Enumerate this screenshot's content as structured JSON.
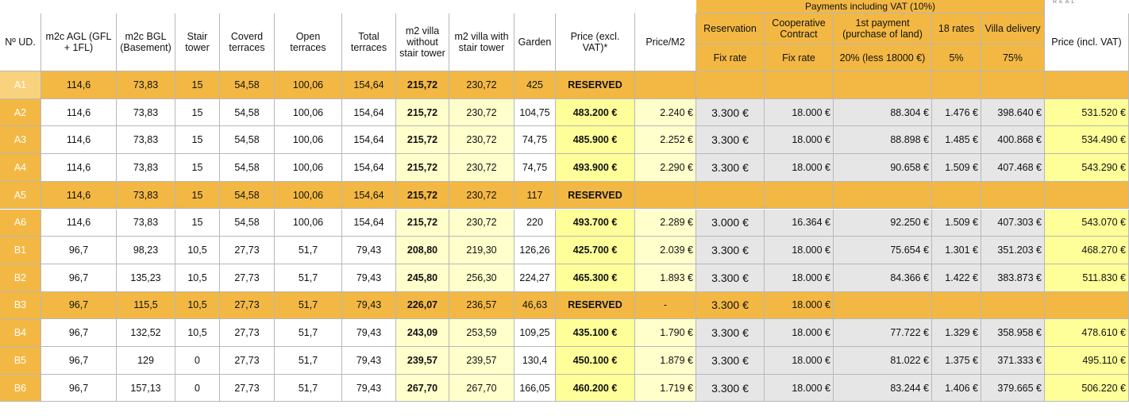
{
  "logo": "REAL",
  "group_header": "Payments including VAT (10%)",
  "columns": [
    {
      "label": "Nº UD."
    },
    {
      "label": "m2c AGL (GFL + 1FL)"
    },
    {
      "label": "m2c BGL (Basement)"
    },
    {
      "label": "Stair tower"
    },
    {
      "label": "Coverd terraces"
    },
    {
      "label": "Open terraces"
    },
    {
      "label": "Total terraces"
    },
    {
      "label": "m2 villa without stair tower"
    },
    {
      "label": "m2 villa with stair tower"
    },
    {
      "label": "Garden"
    },
    {
      "label": "Price (excl. VAT)*"
    },
    {
      "label": "Price/M2"
    },
    {
      "label": "Reservation",
      "sub": "Fix rate"
    },
    {
      "label": "Cooperative Contract",
      "sub": "Fix rate"
    },
    {
      "label": "1st payment (purchase of land)",
      "sub": "20% (less 18000 €)"
    },
    {
      "label": "18 rates",
      "sub": "5%"
    },
    {
      "label": "Villa delivery",
      "sub": "75%"
    },
    {
      "label": "Price (incl. VAT)"
    }
  ],
  "rows": [
    {
      "reserved": true,
      "cells": [
        "A1",
        "114,6",
        "73,83",
        "15",
        "54,58",
        "100,06",
        "154,64",
        "215,72",
        "230,72",
        "425",
        "RESERVED",
        null,
        null,
        null,
        null,
        null,
        null,
        null
      ]
    },
    {
      "reserved": false,
      "cells": [
        "A2",
        "114,6",
        "73,83",
        "15",
        "54,58",
        "100,06",
        "154,64",
        "215,72",
        "230,72",
        "104,75",
        "483.200 €",
        "2.240 €",
        "3.300 €",
        "18.000 €",
        "88.304 €",
        "1.476 €",
        "398.640 €",
        "531.520 €"
      ]
    },
    {
      "reserved": false,
      "cells": [
        "A3",
        "114,6",
        "73,83",
        "15",
        "54,58",
        "100,06",
        "154,64",
        "215,72",
        "230,72",
        "74,75",
        "485.900 €",
        "2.252 €",
        "3.300 €",
        "18.000 €",
        "88.898 €",
        "1.485 €",
        "400.868 €",
        "534.490 €"
      ]
    },
    {
      "reserved": false,
      "cells": [
        "A4",
        "114,6",
        "73,83",
        "15",
        "54,58",
        "100,06",
        "154,64",
        "215,72",
        "230,72",
        "74,75",
        "493.900 €",
        "2.290 €",
        "3.300 €",
        "18.000 €",
        "90.658 €",
        "1.509 €",
        "407.468 €",
        "543.290 €"
      ]
    },
    {
      "reserved": true,
      "cells": [
        "A5",
        "114,6",
        "73,83",
        "15",
        "54,58",
        "100,06",
        "154,64",
        "215,72",
        "230,72",
        "117",
        "RESERVED",
        null,
        null,
        null,
        null,
        null,
        null,
        null
      ]
    },
    {
      "reserved": false,
      "cells": [
        "A6",
        "114,6",
        "73,83",
        "15",
        "54,58",
        "100,06",
        "154,64",
        "215,72",
        "230,72",
        "220",
        "493.700 €",
        "2.289 €",
        "3.000 €",
        "16.364 €",
        "92.250 €",
        "1.509 €",
        "407.303 €",
        "543.070 €"
      ]
    },
    {
      "reserved": false,
      "cells": [
        "B1",
        "96,7",
        "98,23",
        "10,5",
        "27,73",
        "51,7",
        "79,43",
        "208,80",
        "219,30",
        "126,26",
        "425.700 €",
        "2.039 €",
        "3.300 €",
        "18.000 €",
        "75.654 €",
        "1.301 €",
        "351.203 €",
        "468.270 €"
      ]
    },
    {
      "reserved": false,
      "cells": [
        "B2",
        "96,7",
        "135,23",
        "10,5",
        "27,73",
        "51,7",
        "79,43",
        "245,80",
        "256,30",
        "224,27",
        "465.300 €",
        "1.893 €",
        "3.300 €",
        "18.000 €",
        "84.366 €",
        "1.422 €",
        "383.873 €",
        "511.830 €"
      ]
    },
    {
      "reserved": true,
      "cells": [
        "B3",
        "96,7",
        "115,5",
        "10,5",
        "27,73",
        "51,7",
        "79,43",
        "226,07",
        "236,57",
        "46,63",
        "RESERVED",
        "-",
        "3.300 €",
        "18.000 €",
        null,
        null,
        null,
        null
      ]
    },
    {
      "reserved": false,
      "cells": [
        "B4",
        "96,7",
        "132,52",
        "10,5",
        "27,73",
        "51,7",
        "79,43",
        "243,09",
        "253,59",
        "109,25",
        "435.100 €",
        "1.790 €",
        "3.300 €",
        "18.000 €",
        "77.722 €",
        "1.329 €",
        "358.958 €",
        "478.610 €"
      ]
    },
    {
      "reserved": false,
      "cells": [
        "B5",
        "96,7",
        "129",
        "0",
        "27,73",
        "51,7",
        "79,43",
        "239,57",
        "239,57",
        "130,4",
        "450.100 €",
        "1.879 €",
        "3.300 €",
        "18.000 €",
        "81.022 €",
        "1.375 €",
        "371.333 €",
        "495.110 €"
      ]
    },
    {
      "reserved": false,
      "cells": [
        "B6",
        "96,7",
        "157,13",
        "0",
        "27,73",
        "51,7",
        "79,43",
        "267,70",
        "267,70",
        "166,05",
        "460.200 €",
        "1.719 €",
        "3.300 €",
        "18.000 €",
        "83.244 €",
        "1.406 €",
        "379.665 €",
        "506.220 €"
      ]
    }
  ]
}
